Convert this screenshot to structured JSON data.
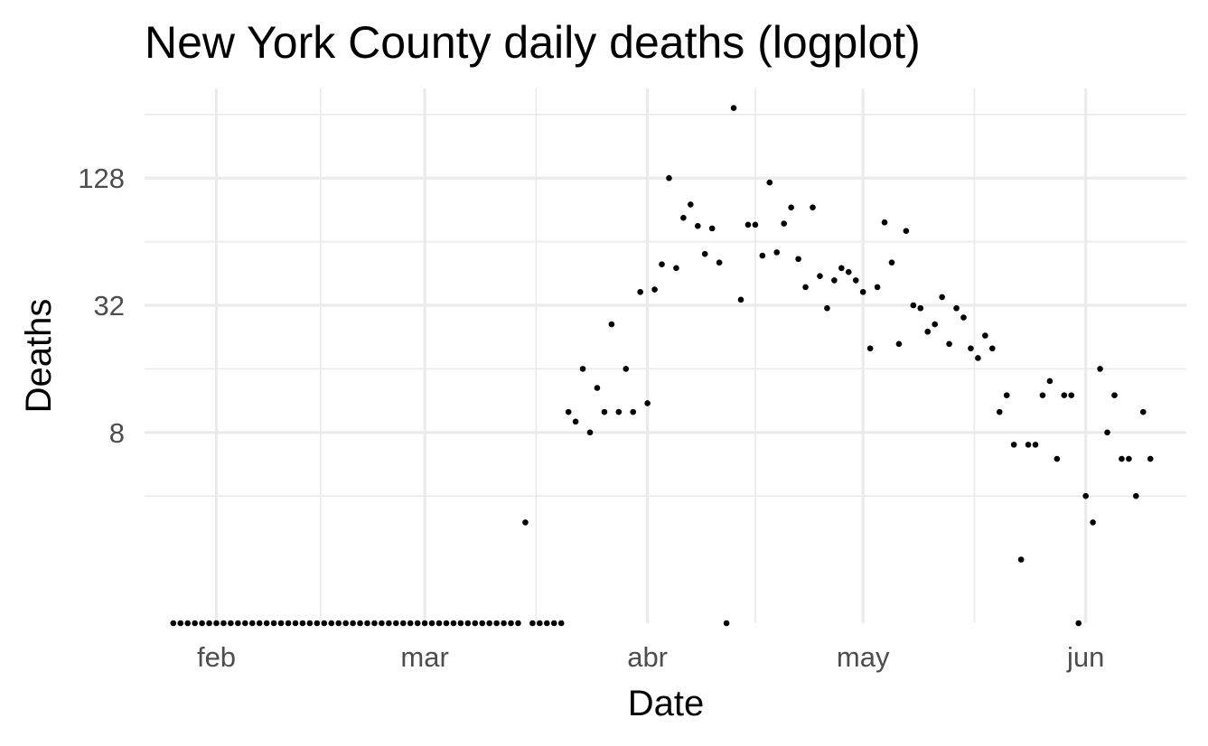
{
  "chart_data": {
    "type": "scatter",
    "title": "New York County daily deaths (logplot)",
    "xlabel": "Date",
    "ylabel": "Deaths",
    "x_scale": "date",
    "y_scale": "log2",
    "xlim": [
      "2020-01-22",
      "2020-06-15"
    ],
    "ylim": [
      1,
      340
    ],
    "x_ticks": [
      {
        "value": "2020-02-01",
        "label": "feb"
      },
      {
        "value": "2020-03-01",
        "label": "mar"
      },
      {
        "value": "2020-04-01",
        "label": "abr"
      },
      {
        "value": "2020-05-01",
        "label": "may"
      },
      {
        "value": "2020-06-01",
        "label": "jun"
      }
    ],
    "y_ticks": [
      {
        "value": 8,
        "label": "8"
      },
      {
        "value": 32,
        "label": "32"
      },
      {
        "value": 128,
        "label": "128"
      }
    ],
    "grid": true,
    "series": [
      {
        "points": [
          [
            "2020-01-26",
            0
          ],
          [
            "2020-01-27",
            0
          ],
          [
            "2020-01-28",
            0
          ],
          [
            "2020-01-29",
            0
          ],
          [
            "2020-01-30",
            0
          ],
          [
            "2020-01-31",
            0
          ],
          [
            "2020-02-01",
            0
          ],
          [
            "2020-02-02",
            0
          ],
          [
            "2020-02-03",
            0
          ],
          [
            "2020-02-04",
            0
          ],
          [
            "2020-02-05",
            0
          ],
          [
            "2020-02-06",
            0
          ],
          [
            "2020-02-07",
            0
          ],
          [
            "2020-02-08",
            0
          ],
          [
            "2020-02-09",
            0
          ],
          [
            "2020-02-10",
            0
          ],
          [
            "2020-02-11",
            0
          ],
          [
            "2020-02-12",
            0
          ],
          [
            "2020-02-13",
            0
          ],
          [
            "2020-02-14",
            0
          ],
          [
            "2020-02-15",
            0
          ],
          [
            "2020-02-16",
            0
          ],
          [
            "2020-02-17",
            0
          ],
          [
            "2020-02-18",
            0
          ],
          [
            "2020-02-19",
            0
          ],
          [
            "2020-02-20",
            0
          ],
          [
            "2020-02-21",
            0
          ],
          [
            "2020-02-22",
            0
          ],
          [
            "2020-02-23",
            0
          ],
          [
            "2020-02-24",
            0
          ],
          [
            "2020-02-25",
            0
          ],
          [
            "2020-02-26",
            0
          ],
          [
            "2020-02-27",
            0
          ],
          [
            "2020-02-28",
            0
          ],
          [
            "2020-02-29",
            0
          ],
          [
            "2020-03-01",
            0
          ],
          [
            "2020-03-02",
            0
          ],
          [
            "2020-03-03",
            0
          ],
          [
            "2020-03-04",
            0
          ],
          [
            "2020-03-05",
            0
          ],
          [
            "2020-03-06",
            0
          ],
          [
            "2020-03-07",
            0
          ],
          [
            "2020-03-08",
            0
          ],
          [
            "2020-03-09",
            0
          ],
          [
            "2020-03-10",
            0
          ],
          [
            "2020-03-11",
            0
          ],
          [
            "2020-03-12",
            0
          ],
          [
            "2020-03-13",
            0
          ],
          [
            "2020-03-14",
            0
          ],
          [
            "2020-03-15",
            3
          ],
          [
            "2020-03-16",
            0
          ],
          [
            "2020-03-17",
            0
          ],
          [
            "2020-03-18",
            0
          ],
          [
            "2020-03-19",
            0
          ],
          [
            "2020-03-20",
            0
          ],
          [
            "2020-03-21",
            10
          ],
          [
            "2020-03-22",
            9
          ],
          [
            "2020-03-23",
            16
          ],
          [
            "2020-03-24",
            8
          ],
          [
            "2020-03-25",
            13
          ],
          [
            "2020-03-26",
            10
          ],
          [
            "2020-03-27",
            26
          ],
          [
            "2020-03-28",
            10
          ],
          [
            "2020-03-29",
            16
          ],
          [
            "2020-03-30",
            10
          ],
          [
            "2020-03-31",
            37
          ],
          [
            "2020-04-01",
            11
          ],
          [
            "2020-04-02",
            38
          ],
          [
            "2020-04-03",
            50
          ],
          [
            "2020-04-04",
            128
          ],
          [
            "2020-04-05",
            48
          ],
          [
            "2020-04-06",
            83
          ],
          [
            "2020-04-07",
            96
          ],
          [
            "2020-04-08",
            76
          ],
          [
            "2020-04-09",
            56
          ],
          [
            "2020-04-10",
            74
          ],
          [
            "2020-04-11",
            51
          ],
          [
            "2020-04-12",
            0
          ],
          [
            "2020-04-13",
            275
          ],
          [
            "2020-04-14",
            34
          ],
          [
            "2020-04-15",
            77
          ],
          [
            "2020-04-16",
            77
          ],
          [
            "2020-04-17",
            55
          ],
          [
            "2020-04-18",
            122
          ],
          [
            "2020-04-19",
            57
          ],
          [
            "2020-04-20",
            78
          ],
          [
            "2020-04-21",
            93
          ],
          [
            "2020-04-22",
            53
          ],
          [
            "2020-04-23",
            39
          ],
          [
            "2020-04-24",
            93
          ],
          [
            "2020-04-25",
            44
          ],
          [
            "2020-04-26",
            31
          ],
          [
            "2020-04-27",
            42
          ],
          [
            "2020-04-28",
            48
          ],
          [
            "2020-04-29",
            46
          ],
          [
            "2020-04-30",
            42
          ],
          [
            "2020-05-01",
            37
          ],
          [
            "2020-05-02",
            20
          ],
          [
            "2020-05-03",
            39
          ],
          [
            "2020-05-04",
            79
          ],
          [
            "2020-05-05",
            51
          ],
          [
            "2020-05-06",
            21
          ],
          [
            "2020-05-07",
            72
          ],
          [
            "2020-05-08",
            32
          ],
          [
            "2020-05-09",
            31
          ],
          [
            "2020-05-10",
            24
          ],
          [
            "2020-05-11",
            26
          ],
          [
            "2020-05-12",
            35
          ],
          [
            "2020-05-13",
            21
          ],
          [
            "2020-05-14",
            31
          ],
          [
            "2020-05-15",
            28
          ],
          [
            "2020-05-16",
            20
          ],
          [
            "2020-05-17",
            18
          ],
          [
            "2020-05-18",
            23
          ],
          [
            "2020-05-19",
            20
          ],
          [
            "2020-05-20",
            10
          ],
          [
            "2020-05-21",
            12
          ],
          [
            "2020-05-22",
            7
          ],
          [
            "2020-05-23",
            2
          ],
          [
            "2020-05-24",
            7
          ],
          [
            "2020-05-25",
            7
          ],
          [
            "2020-05-26",
            12
          ],
          [
            "2020-05-27",
            14
          ],
          [
            "2020-05-28",
            6
          ],
          [
            "2020-05-29",
            12
          ],
          [
            "2020-05-30",
            12
          ],
          [
            "2020-05-31",
            0
          ],
          [
            "2020-06-01",
            4
          ],
          [
            "2020-06-02",
            3
          ],
          [
            "2020-06-03",
            16
          ],
          [
            "2020-06-04",
            8
          ],
          [
            "2020-06-05",
            12
          ],
          [
            "2020-06-06",
            6
          ],
          [
            "2020-06-07",
            6
          ],
          [
            "2020-06-08",
            4
          ],
          [
            "2020-06-09",
            10
          ],
          [
            "2020-06-10",
            6
          ]
        ]
      }
    ]
  }
}
